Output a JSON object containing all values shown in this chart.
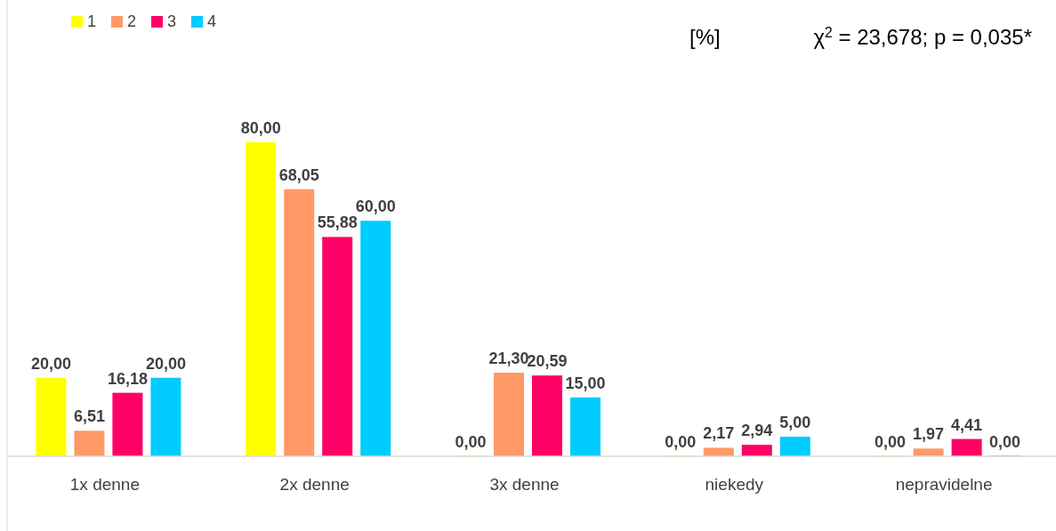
{
  "chart_data": {
    "type": "bar",
    "categories": [
      "1x denne",
      "2x denne",
      "3x denne",
      "niekedy",
      "nepravidelne"
    ],
    "series": [
      {
        "name": "1",
        "color": "#ffff00",
        "values": [
          20,
          80,
          0,
          0,
          0
        ],
        "value_labels": [
          "20,00",
          "80,00",
          "0,00",
          "0,00",
          "0,00"
        ]
      },
      {
        "name": "2",
        "color": "#ff9966",
        "values": [
          6.51,
          68.05,
          21.3,
          2.17,
          1.97
        ],
        "value_labels": [
          "6,51",
          "68,05",
          "21,30",
          "2,17",
          "1,97"
        ]
      },
      {
        "name": "3",
        "color": "#ff0066",
        "values": [
          16.18,
          55.88,
          20.59,
          2.94,
          4.41
        ],
        "value_labels": [
          "16,18",
          "55,88",
          "20,59",
          "2,94",
          "4,41"
        ]
      },
      {
        "name": "4",
        "color": "#00ccff",
        "values": [
          20,
          60,
          15,
          5,
          0
        ],
        "value_labels": [
          "20,00",
          "60,00",
          "15,00",
          "5,00",
          "0,00"
        ]
      }
    ],
    "annotations": [
      "[%]",
      "χ$^{2}$ = 23,678; p = 0,035*"
    ],
    "legend": "top left"
  }
}
